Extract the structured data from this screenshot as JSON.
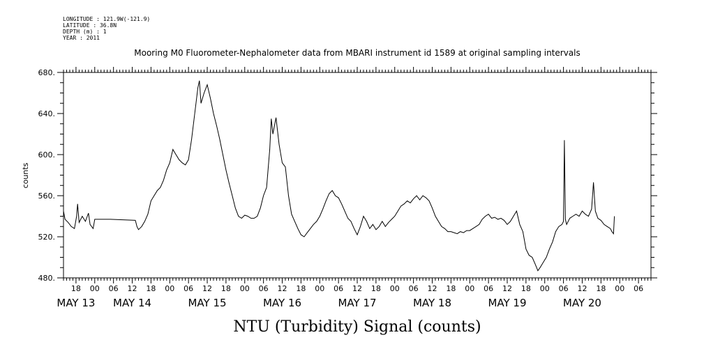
{
  "metadata": {
    "longitude": "LONGITUDE : 121.9W(-121.9)",
    "latitude": "LATITUDE : 36.8N",
    "depth": "DEPTH (m) : 1",
    "year": "YEAR : 2011"
  },
  "chart_data": {
    "type": "line",
    "title": "Mooring M0 Fluorometer-Nephalometer data from MBARI instrument id 1589 at original sampling intervals",
    "ylabel": "counts",
    "xlabel": "NTU (Turbidity) Signal (counts)",
    "ylim": [
      480,
      680
    ],
    "yticks": [
      480,
      520,
      560,
      600,
      640,
      680
    ],
    "ytick_labels": [
      "480.",
      "520.",
      "560.",
      "600.",
      "640.",
      "680."
    ],
    "x_unit": "hours since 00:00 May 13, 2011",
    "xlim": [
      -10,
      178
    ],
    "hour_labels": [
      {
        "h": -6,
        "label": "18"
      },
      {
        "h": 0,
        "label": "00"
      },
      {
        "h": 6,
        "label": "06"
      },
      {
        "h": 12,
        "label": "12"
      },
      {
        "h": 18,
        "label": "18"
      },
      {
        "h": 24,
        "label": "00"
      },
      {
        "h": 30,
        "label": "06"
      },
      {
        "h": 36,
        "label": "12"
      },
      {
        "h": 42,
        "label": "18"
      },
      {
        "h": 48,
        "label": "00"
      },
      {
        "h": 54,
        "label": "06"
      },
      {
        "h": 60,
        "label": "12"
      },
      {
        "h": 66,
        "label": "18"
      },
      {
        "h": 72,
        "label": "00"
      },
      {
        "h": 78,
        "label": "06"
      },
      {
        "h": 84,
        "label": "12"
      },
      {
        "h": 90,
        "label": "18"
      },
      {
        "h": 96,
        "label": "00"
      },
      {
        "h": 102,
        "label": "06"
      },
      {
        "h": 108,
        "label": "12"
      },
      {
        "h": 114,
        "label": "18"
      },
      {
        "h": 120,
        "label": "00"
      },
      {
        "h": 126,
        "label": "06"
      },
      {
        "h": 132,
        "label": "12"
      },
      {
        "h": 138,
        "label": "18"
      },
      {
        "h": 144,
        "label": "00"
      },
      {
        "h": 150,
        "label": "06"
      },
      {
        "h": 156,
        "label": "12"
      },
      {
        "h": 162,
        "label": "18"
      },
      {
        "h": 168,
        "label": "00"
      },
      {
        "h": 174,
        "label": "06"
      }
    ],
    "day_labels": [
      {
        "h": -6,
        "label": "MAY 13"
      },
      {
        "h": 12,
        "label": "MAY 14"
      },
      {
        "h": 36,
        "label": "MAY 15"
      },
      {
        "h": 60,
        "label": "MAY 16"
      },
      {
        "h": 84,
        "label": "MAY 17"
      },
      {
        "h": 108,
        "label": "MAY 18"
      },
      {
        "h": 132,
        "label": "MAY 19"
      },
      {
        "h": 156,
        "label": "MAY 20"
      }
    ],
    "series": [
      {
        "points": [
          [
            -10,
            545
          ],
          [
            -9.5,
            537
          ],
          [
            -8.5,
            534
          ],
          [
            -7.5,
            530
          ],
          [
            -6.5,
            528
          ],
          [
            -5.8,
            540
          ],
          [
            -5.5,
            552
          ],
          [
            -5,
            534
          ],
          [
            -4,
            540
          ],
          [
            -3,
            535
          ],
          [
            -2,
            543
          ],
          [
            -1.5,
            532
          ],
          [
            -0.5,
            528
          ],
          [
            0,
            537
          ],
          [
            5,
            537
          ],
          [
            13,
            536
          ],
          [
            13.5,
            530
          ],
          [
            14,
            527
          ],
          [
            15,
            530
          ],
          [
            16,
            535
          ],
          [
            17,
            542
          ],
          [
            18,
            555
          ],
          [
            19,
            560
          ],
          [
            20,
            565
          ],
          [
            21,
            568
          ],
          [
            22,
            575
          ],
          [
            23,
            585
          ],
          [
            24,
            592
          ],
          [
            25,
            605
          ],
          [
            26,
            600
          ],
          [
            27,
            595
          ],
          [
            28,
            592
          ],
          [
            29,
            590
          ],
          [
            30,
            595
          ],
          [
            31,
            615
          ],
          [
            32,
            640
          ],
          [
            33,
            665
          ],
          [
            33.5,
            672
          ],
          [
            34,
            650
          ],
          [
            35,
            660
          ],
          [
            36,
            668
          ],
          [
            37,
            655
          ],
          [
            38,
            640
          ],
          [
            39,
            628
          ],
          [
            40,
            615
          ],
          [
            41,
            600
          ],
          [
            42,
            585
          ],
          [
            43,
            572
          ],
          [
            44,
            560
          ],
          [
            45,
            548
          ],
          [
            46,
            540
          ],
          [
            47,
            538
          ],
          [
            48,
            541
          ],
          [
            49,
            540
          ],
          [
            50,
            538
          ],
          [
            51,
            538
          ],
          [
            52,
            540
          ],
          [
            53,
            548
          ],
          [
            54,
            560
          ],
          [
            55,
            568
          ],
          [
            56,
            605
          ],
          [
            56.5,
            635
          ],
          [
            57,
            620
          ],
          [
            58,
            636
          ],
          [
            59,
            610
          ],
          [
            60,
            592
          ],
          [
            61,
            588
          ],
          [
            62,
            560
          ],
          [
            63,
            542
          ],
          [
            64,
            535
          ],
          [
            65,
            528
          ],
          [
            66,
            522
          ],
          [
            67,
            520
          ],
          [
            68,
            524
          ],
          [
            69,
            528
          ],
          [
            70,
            532
          ],
          [
            71,
            535
          ],
          [
            72,
            540
          ],
          [
            73,
            547
          ],
          [
            74,
            555
          ],
          [
            75,
            562
          ],
          [
            76,
            565
          ],
          [
            77,
            560
          ],
          [
            78,
            558
          ],
          [
            79,
            552
          ],
          [
            80,
            545
          ],
          [
            81,
            538
          ],
          [
            82,
            535
          ],
          [
            83,
            528
          ],
          [
            84,
            522
          ],
          [
            85,
            530
          ],
          [
            86,
            540
          ],
          [
            87,
            535
          ],
          [
            88,
            528
          ],
          [
            89,
            532
          ],
          [
            90,
            527
          ],
          [
            91,
            530
          ],
          [
            92,
            535
          ],
          [
            93,
            530
          ],
          [
            94,
            534
          ],
          [
            95,
            537
          ],
          [
            96,
            540
          ],
          [
            97,
            545
          ],
          [
            98,
            550
          ],
          [
            99,
            552
          ],
          [
            100,
            555
          ],
          [
            101,
            553
          ],
          [
            102,
            557
          ],
          [
            103,
            560
          ],
          [
            104,
            556
          ],
          [
            105,
            560
          ],
          [
            106,
            558
          ],
          [
            107,
            555
          ],
          [
            108,
            548
          ],
          [
            109,
            540
          ],
          [
            110,
            535
          ],
          [
            111,
            530
          ],
          [
            112,
            528
          ],
          [
            113,
            525
          ],
          [
            114,
            525
          ],
          [
            115,
            524
          ],
          [
            116,
            523
          ],
          [
            117,
            525
          ],
          [
            118,
            524
          ],
          [
            119,
            526
          ],
          [
            120,
            526
          ],
          [
            121,
            528
          ],
          [
            122,
            530
          ],
          [
            123,
            532
          ],
          [
            124,
            537
          ],
          [
            125,
            540
          ],
          [
            126,
            542
          ],
          [
            127,
            538
          ],
          [
            128,
            539
          ],
          [
            129,
            537
          ],
          [
            130,
            538
          ],
          [
            131,
            536
          ],
          [
            132,
            532
          ],
          [
            133,
            535
          ],
          [
            134,
            540
          ],
          [
            135,
            545
          ],
          [
            136,
            532
          ],
          [
            137,
            525
          ],
          [
            138,
            508
          ],
          [
            139,
            502
          ],
          [
            140,
            500
          ],
          [
            141,
            493
          ],
          [
            141.8,
            487
          ],
          [
            142.5,
            490
          ],
          [
            143.5,
            495
          ],
          [
            144.5,
            500
          ],
          [
            145.5,
            508
          ],
          [
            146.5,
            515
          ],
          [
            147.5,
            525
          ],
          [
            148.5,
            530
          ],
          [
            149.5,
            532
          ],
          [
            150,
            535
          ],
          [
            150.3,
            614
          ],
          [
            150.6,
            537
          ],
          [
            151,
            532
          ],
          [
            152,
            538
          ],
          [
            153,
            540
          ],
          [
            154,
            542
          ],
          [
            155,
            540
          ],
          [
            156,
            545
          ],
          [
            157,
            542
          ],
          [
            158,
            540
          ],
          [
            159,
            547
          ],
          [
            159.6,
            573
          ],
          [
            160.2,
            545
          ],
          [
            161,
            538
          ],
          [
            162,
            536
          ],
          [
            163,
            532
          ],
          [
            164,
            530
          ],
          [
            165,
            528
          ],
          [
            165.5,
            525
          ],
          [
            166,
            523
          ],
          [
            166.3,
            540
          ]
        ]
      }
    ]
  }
}
